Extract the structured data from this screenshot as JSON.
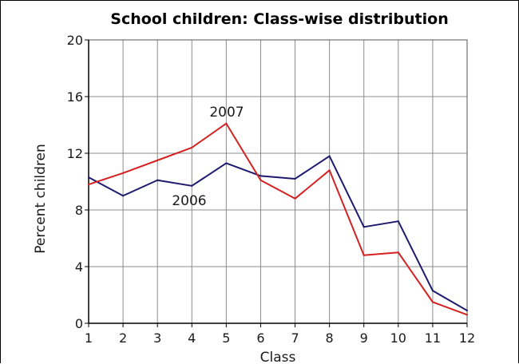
{
  "chart_data": {
    "type": "line",
    "title": "School children: Class-wise distribution",
    "xlabel": "Class",
    "ylabel": "Percent children",
    "x": [
      "1",
      "2",
      "3",
      "4",
      "5",
      "6",
      "7",
      "8",
      "9",
      "10",
      "11",
      "12"
    ],
    "xlim": [
      1,
      12
    ],
    "ylim": [
      0,
      20
    ],
    "yticks": [
      "0",
      "4",
      "8",
      "12",
      "16",
      "20"
    ],
    "grid": true,
    "legend": "none",
    "series": [
      {
        "name": "2006",
        "color": "#1f1a6e",
        "values": [
          10.3,
          9.0,
          10.1,
          9.7,
          11.3,
          10.4,
          10.2,
          11.8,
          6.8,
          7.2,
          2.3,
          0.9
        ]
      },
      {
        "name": "2007",
        "color": "#d42222",
        "values": [
          9.8,
          10.6,
          11.5,
          12.4,
          14.1,
          10.1,
          8.8,
          10.8,
          4.8,
          5.0,
          1.5,
          0.6
        ]
      }
    ]
  }
}
